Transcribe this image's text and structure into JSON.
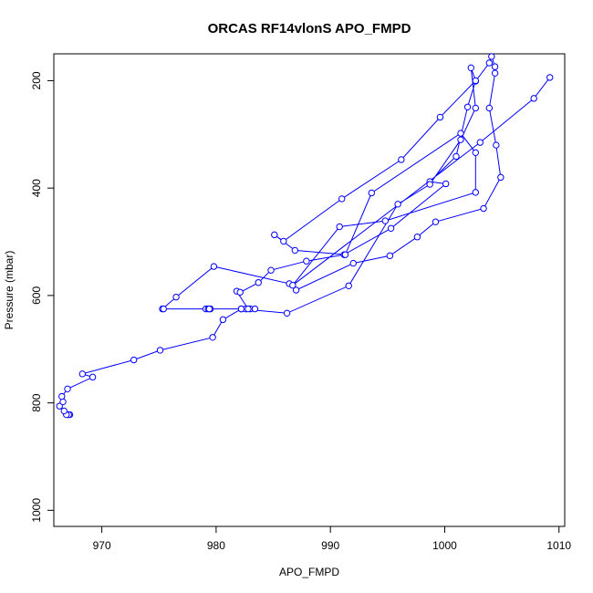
{
  "chart_data": {
    "type": "scatter",
    "title": "ORCAS RF14vlonS APO_FMPD",
    "xlabel": "APO_FMPD",
    "ylabel": "Pressure (mbar)",
    "xlim": [
      965.8,
      1010.5
    ],
    "ylim": [
      1030,
      150
    ],
    "y_inverted": true,
    "x_ticks": [
      970,
      980,
      990,
      1000,
      1010
    ],
    "y_ticks": [
      200,
      400,
      600,
      800,
      1000
    ],
    "grid": false,
    "series": [
      {
        "color": "#0000ff",
        "marker": "open-circle",
        "points": [
          [
            967.0,
            822
          ],
          [
            967.2,
            822
          ],
          [
            967.1,
            822
          ],
          [
            966.9,
            822
          ],
          [
            966.7,
            815
          ],
          [
            966.3,
            806
          ],
          [
            966.6,
            798
          ],
          [
            966.5,
            788
          ],
          [
            967.0,
            774
          ],
          [
            969.2,
            752
          ],
          [
            968.3,
            746
          ],
          [
            972.8,
            720
          ],
          [
            975.1,
            702
          ],
          [
            979.7,
            678
          ],
          [
            980.6,
            645
          ],
          [
            982.2,
            625
          ],
          [
            982.6,
            625
          ],
          [
            983.0,
            625
          ],
          [
            983.4,
            625
          ],
          [
            982.8,
            625
          ],
          [
            981.8,
            592
          ],
          [
            982.1,
            594
          ],
          [
            983.7,
            576
          ],
          [
            984.8,
            553
          ],
          [
            987.9,
            536
          ],
          [
            991.2,
            524
          ],
          [
            995.3,
            475
          ],
          [
            1000.1,
            392
          ],
          [
            998.7,
            388
          ],
          [
            1001.0,
            341
          ],
          [
            1002.0,
            249
          ],
          [
            1002.7,
            201
          ],
          [
            1003.9,
            167
          ],
          [
            1004.1,
            155
          ],
          [
            1004.4,
            174
          ],
          [
            1004.4,
            186
          ],
          [
            1003.9,
            251
          ],
          [
            1004.5,
            320
          ],
          [
            1004.9,
            380
          ],
          [
            1003.4,
            438
          ],
          [
            999.2,
            463
          ],
          [
            997.6,
            491
          ],
          [
            995.2,
            526
          ],
          [
            992.0,
            540
          ],
          [
            987.0,
            590
          ],
          [
            986.4,
            578
          ],
          [
            979.8,
            546
          ],
          [
            976.5,
            603
          ],
          [
            975.3,
            625
          ],
          [
            975.4,
            625
          ],
          [
            979.1,
            625
          ],
          [
            979.5,
            625
          ],
          [
            979.3,
            625
          ],
          [
            979.4,
            625
          ],
          [
            982.2,
            625
          ],
          [
            986.2,
            633
          ],
          [
            991.6,
            582
          ],
          [
            995.9,
            430
          ],
          [
            998.7,
            393
          ],
          [
            1001.4,
            310
          ],
          [
            1002.7,
            251
          ],
          [
            1002.3,
            176
          ],
          [
            1002.7,
            200
          ],
          [
            999.6,
            268
          ],
          [
            996.2,
            347
          ],
          [
            991.0,
            420
          ],
          [
            985.9,
            499
          ],
          [
            985.1,
            487
          ],
          [
            986.9,
            516
          ],
          [
            991.3,
            524
          ],
          [
            993.6,
            409
          ],
          [
            1001.4,
            298
          ],
          [
            1002.7,
            334
          ],
          [
            1002.7,
            408
          ],
          [
            994.8,
            461
          ],
          [
            990.8,
            472
          ],
          [
            986.7,
            581
          ],
          [
            1003.1,
            315
          ],
          [
            1007.8,
            233
          ],
          [
            1009.2,
            194
          ]
        ]
      }
    ]
  }
}
